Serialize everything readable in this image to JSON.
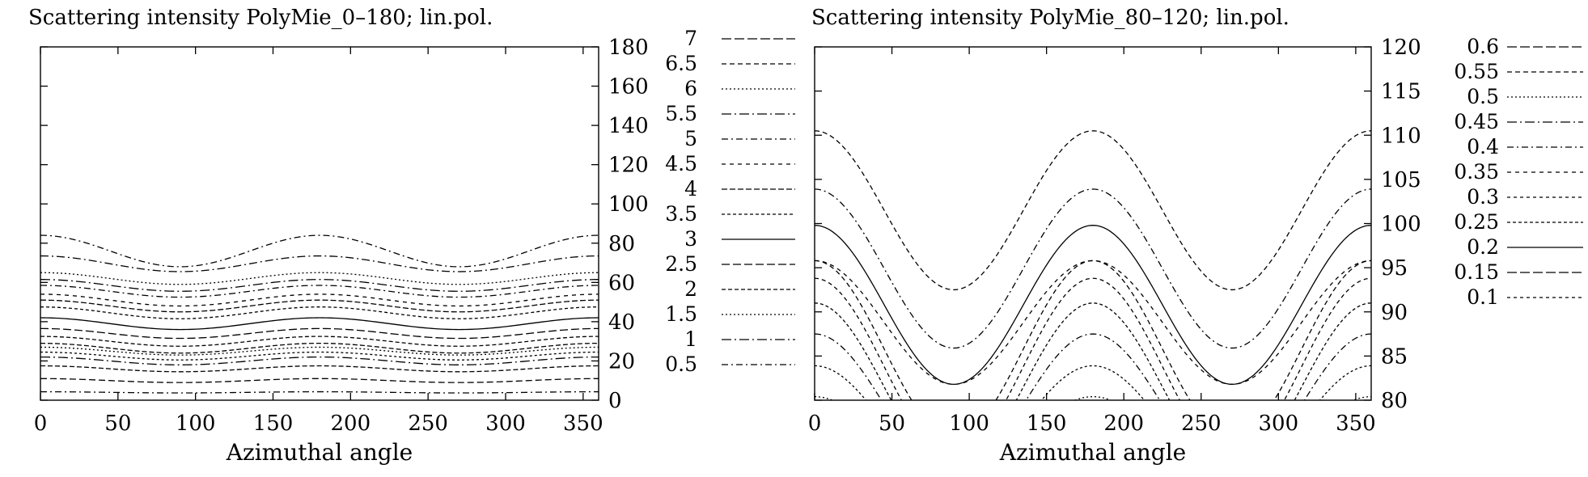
{
  "chart_data": [
    {
      "type": "line",
      "subtype": "contour",
      "title": "Scattering intensity PolyMie_0–180; lin.pol.",
      "xlabel": "Azimuthal angle",
      "ylabel": "",
      "xlim": [
        0,
        360
      ],
      "ylim": [
        0,
        180
      ],
      "xticks": [
        0,
        50,
        100,
        150,
        200,
        250,
        300,
        350
      ],
      "yticks": [
        0,
        20,
        40,
        60,
        80,
        100,
        120,
        140,
        160,
        180
      ],
      "y_axis_side": "right",
      "legend_position": "right",
      "series": [
        {
          "name": "7",
          "dash": "12,4",
          "mean": null,
          "amplitude": null
        },
        {
          "name": "6.5",
          "dash": "6,4",
          "mean": null,
          "amplitude": null
        },
        {
          "name": "6",
          "dash": "2,3",
          "mean": 62,
          "amplitude": 3
        },
        {
          "name": "5.5",
          "dash": "12,4,2,4",
          "mean": 58.5,
          "amplitude": 3
        },
        {
          "name": "5",
          "dash": "8,4,2,4",
          "mean": 55.5,
          "amplitude": 3
        },
        {
          "name": "4.5",
          "dash": "5,5",
          "mean": 51,
          "amplitude": 3
        },
        {
          "name": "4",
          "dash": "7,3",
          "mean": 48,
          "amplitude": 3
        },
        {
          "name": "3.5",
          "dash": "4,3",
          "mean": 44.5,
          "amplitude": 3
        },
        {
          "name": "3",
          "dash": "",
          "mean": 39,
          "amplitude": 3
        },
        {
          "name": "2.5",
          "dash": "10,4",
          "mean": 34,
          "amplitude": 2.5
        },
        {
          "name": "2",
          "dash": "5,3",
          "mean": 30,
          "amplitude": 2.5
        },
        {
          "name": "1.5",
          "dash": "2,3",
          "mean": 25,
          "amplitude": 2
        },
        {
          "name": "1",
          "dash": "12,4,2,4",
          "mean": 20,
          "amplitude": 2
        },
        {
          "name": "0.5",
          "dash": "8,4,2,4",
          "mean": 4,
          "amplitude": 0.3
        }
      ],
      "additional_unlabeled_contours": [
        {
          "mean": 69.5,
          "amplitude": 4,
          "dash": "10,4,2,4"
        },
        {
          "mean": 76,
          "amplitude": 8,
          "dash": "8,4,2,4"
        },
        {
          "mean": 26.5,
          "amplitude": 2.5,
          "dash": "6,3"
        },
        {
          "mean": 22.5,
          "amplitude": 2,
          "dash": "3,3"
        },
        {
          "mean": 16,
          "amplitude": 1.5,
          "dash": "6,3"
        },
        {
          "mean": 10,
          "amplitude": 1,
          "dash": "8,4"
        }
      ]
    },
    {
      "type": "line",
      "subtype": "contour",
      "title": "Scattering intensity PolyMie_80–120; lin.pol.",
      "xlabel": "Azimuthal angle",
      "ylabel": "",
      "xlim": [
        0,
        360
      ],
      "ylim": [
        80,
        120
      ],
      "xticks": [
        0,
        50,
        100,
        150,
        200,
        250,
        300,
        350
      ],
      "yticks": [
        80,
        85,
        90,
        95,
        100,
        105,
        110,
        115,
        120
      ],
      "y_axis_side": "right",
      "legend_position": "right",
      "series": [
        {
          "name": "0.6",
          "dash": "12,4",
          "mean": null,
          "amplitude": null
        },
        {
          "name": "0.55",
          "dash": "6,4",
          "mean": 101.5,
          "amplitude": 9
        },
        {
          "name": "0.5",
          "dash": "2,3",
          "mean": null,
          "amplitude": null
        },
        {
          "name": "0.45",
          "dash": "12,4,2,4",
          "mean": null,
          "amplitude": null
        },
        {
          "name": "0.4",
          "dash": "8,4,2,4",
          "mean": 94.9,
          "amplitude": 9
        },
        {
          "name": "0.35",
          "dash": "5,5",
          "mean": 88.8,
          "amplitude": 7
        },
        {
          "name": "0.3",
          "dash": "4,4",
          "mean": null,
          "amplitude": null
        },
        {
          "name": "0.25",
          "dash": "4,3",
          "mean": null,
          "amplitude": null
        },
        {
          "name": "0.2",
          "dash": "",
          "mean": 90.8,
          "amplitude": 9
        },
        {
          "name": "0.15",
          "dash": "12,4",
          "mean": null,
          "amplitude": null
        },
        {
          "name": "0.1",
          "dash": "4,4",
          "mean": null,
          "amplitude": null
        }
      ],
      "additional_unlabeled_contours": [
        {
          "mean": 85.8,
          "amplitude": 10,
          "dash": "6,4"
        },
        {
          "mean": 83.8,
          "amplitude": 10,
          "dash": "5,4"
        },
        {
          "mean": 81.5,
          "amplitude": 9.5,
          "dash": "4,3"
        },
        {
          "mean": 79.5,
          "amplitude": 8,
          "dash": "8,4,2,4"
        },
        {
          "mean": 77.4,
          "amplitude": 6.5,
          "dash": "3,3"
        },
        {
          "mean": 75.4,
          "amplitude": 5,
          "dash": "2,3"
        },
        {
          "mean": 73.9,
          "amplitude": 4,
          "dash": "4,3"
        },
        {
          "mean": 72.4,
          "amplitude": 3,
          "dash": "2,3"
        }
      ]
    }
  ]
}
